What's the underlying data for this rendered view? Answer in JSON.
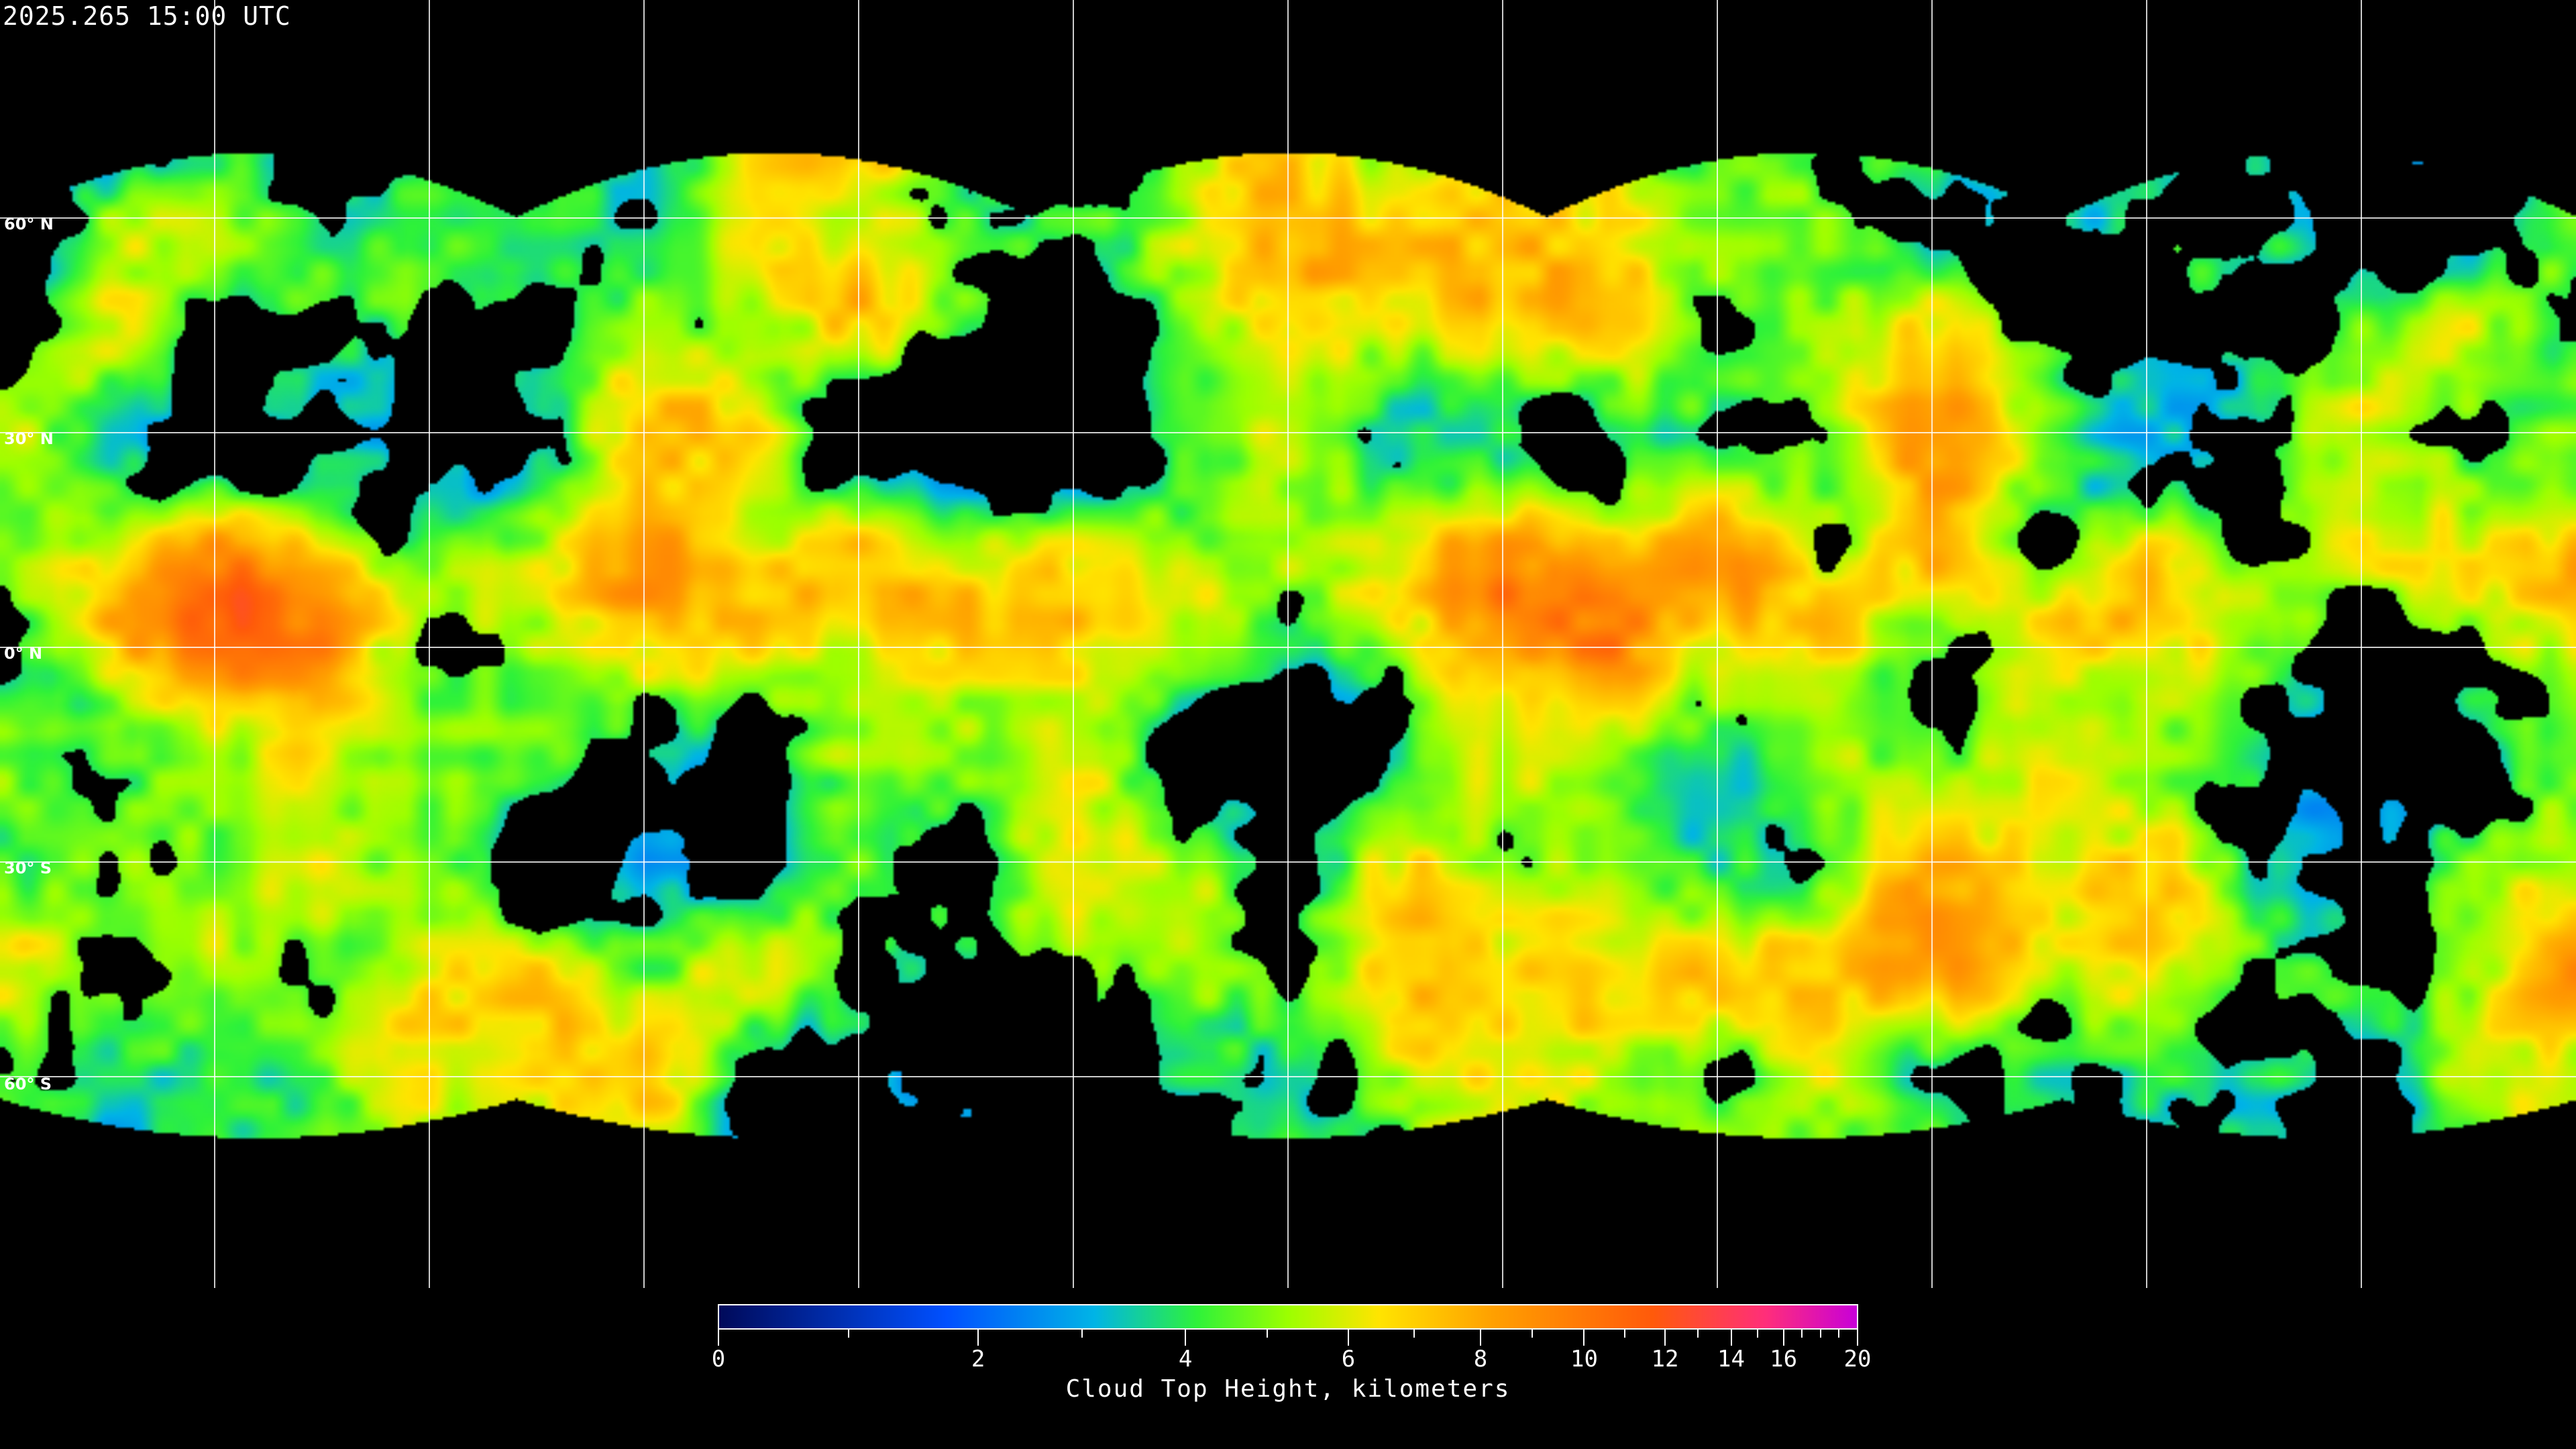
{
  "header": {
    "timestamp": "2025.265 15:00 UTC"
  },
  "map": {
    "projection": "equirectangular",
    "grid_interval_degrees": 30,
    "lat_labels": [
      "60° N",
      "30° N",
      "0° N",
      "30° S",
      "60° S"
    ],
    "grid_color": "#ffffff",
    "coastline_color": "#ffffff",
    "no_data_color": "#000000"
  },
  "colorbar": {
    "title": "Cloud Top Height, kilometers",
    "min": 0,
    "max": 20,
    "major_ticks": [
      "0",
      "2",
      "4",
      "6",
      "8",
      "10",
      "12",
      "14",
      "16",
      "20"
    ],
    "minor_ticks": [
      1,
      3,
      5,
      7,
      9,
      11,
      13,
      15,
      17,
      18,
      19
    ],
    "colors": [
      "#000a5a",
      "#0050ff",
      "#00b4e6",
      "#2ef23a",
      "#9cff00",
      "#ffe400",
      "#ffa000",
      "#ff5a0a",
      "#ff2e7a",
      "#c800d8"
    ]
  }
}
